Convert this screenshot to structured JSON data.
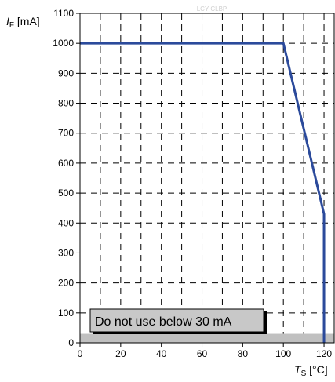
{
  "chart_data": {
    "type": "line",
    "watermark": "LCY CLBP",
    "ylabel": {
      "main": "I",
      "sub": "F",
      "unit": " [mA]"
    },
    "xlabel": {
      "main": "T",
      "sub": "S",
      "unit": " [°C]"
    },
    "xlim": [
      0,
      125
    ],
    "ylim": [
      0,
      1100
    ],
    "x_ticks": [
      0,
      20,
      40,
      60,
      80,
      100,
      120
    ],
    "y_ticks": [
      0,
      100,
      200,
      300,
      400,
      500,
      600,
      700,
      800,
      900,
      1000,
      1100
    ],
    "x_grid_major": [
      20,
      40,
      60,
      80,
      100,
      120
    ],
    "x_grid_minor": [
      10,
      30,
      50,
      70,
      90,
      110
    ],
    "grid": true,
    "series": [
      {
        "x": [
          0,
          100,
          120,
          120
        ],
        "y": [
          1000,
          1000,
          430,
          0
        ],
        "color": "#2b4a9b"
      }
    ],
    "forbidden_band": {
      "y_max": 30,
      "color": "#c0c0c0"
    },
    "annotation": {
      "text": "Do not use below 30 mA",
      "color": "#c8c8c8"
    }
  }
}
